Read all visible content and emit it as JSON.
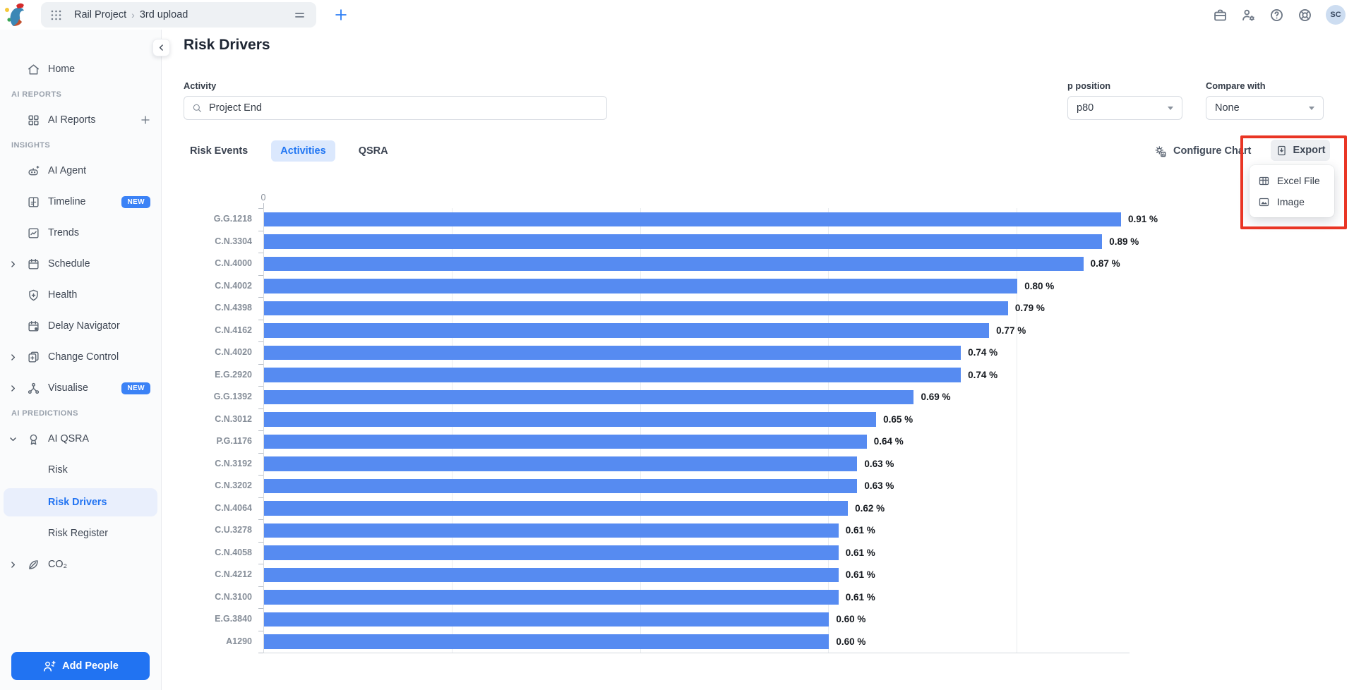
{
  "topbar": {
    "breadcrumb": {
      "project": "Rail Project",
      "separator": "›",
      "page": "3rd upload"
    },
    "avatar_initials": "SC"
  },
  "sidebar": {
    "sections": [
      {
        "label": "",
        "items": [
          {
            "label": "Home",
            "icon": "home"
          }
        ]
      },
      {
        "label": "AI REPORTS",
        "items": [
          {
            "label": "AI Reports",
            "icon": "grid",
            "plus": true
          }
        ]
      },
      {
        "label": "INSIGHTS",
        "items": [
          {
            "label": "AI Agent",
            "icon": "robot"
          },
          {
            "label": "Timeline",
            "icon": "timeline",
            "badge": "NEW"
          },
          {
            "label": "Trends",
            "icon": "trends"
          },
          {
            "label": "Schedule",
            "icon": "calendar",
            "chevron": true
          },
          {
            "label": "Health",
            "icon": "shield-plus"
          },
          {
            "label": "Delay Navigator",
            "icon": "calendar-clock"
          },
          {
            "label": "Change Control",
            "icon": "copy-plus",
            "chevron": true
          },
          {
            "label": "Visualise",
            "icon": "network",
            "chevron": true,
            "badge": "NEW"
          }
        ]
      },
      {
        "label": "AI PREDICTIONS",
        "items": [
          {
            "label": "AI QSRA",
            "icon": "award",
            "expanded": true,
            "children": [
              "Risk",
              "Risk Drivers",
              "Risk Register"
            ],
            "selected_child": "Risk Drivers"
          },
          {
            "label": "CO₂",
            "icon": "leaf",
            "chevron": true
          }
        ]
      }
    ],
    "add_people_label": "Add People"
  },
  "main": {
    "title": "Risk Drivers",
    "filters": {
      "activity_label": "Activity",
      "activity_value": "Project End",
      "p_position_label": "p position",
      "p_position_value": "p80",
      "compare_with_label": "Compare with",
      "compare_with_value": "None"
    },
    "tabs": [
      "Risk Events",
      "Activities",
      "QSRA"
    ],
    "active_tab": "Activities",
    "toolbar": {
      "configure_chart_label": "Configure Chart",
      "export_label": "Export"
    },
    "export_menu": [
      {
        "label": "Excel File",
        "icon": "table"
      },
      {
        "label": "Image",
        "icon": "image"
      }
    ]
  },
  "chart_data": {
    "type": "bar",
    "orientation": "horizontal",
    "categories": [
      "G.G.1218",
      "C.N.3304",
      "C.N.4000",
      "C.N.4002",
      "C.N.4398",
      "C.N.4162",
      "C.N.4020",
      "E.G.2920",
      "G.G.1392",
      "C.N.3012",
      "P.G.1176",
      "C.N.3192",
      "C.N.3202",
      "C.N.4064",
      "C.U.3278",
      "C.N.4058",
      "C.N.4212",
      "C.N.3100",
      "E.G.3840",
      "A1290"
    ],
    "values": [
      0.91,
      0.89,
      0.87,
      0.8,
      0.79,
      0.77,
      0.74,
      0.74,
      0.69,
      0.65,
      0.64,
      0.63,
      0.63,
      0.62,
      0.61,
      0.61,
      0.61,
      0.61,
      0.6,
      0.6
    ],
    "value_labels": [
      "0.91 %",
      "0.89 %",
      "0.87 %",
      "0.80 %",
      "0.79 %",
      "0.77 %",
      "0.74 %",
      "0.74 %",
      "0.69 %",
      "0.65 %",
      "0.64 %",
      "0.63 %",
      "0.63 %",
      "0.62 %",
      "0.61 %",
      "0.61 %",
      "0.61 %",
      "0.61 %",
      "0.60 %",
      "0.60 %"
    ],
    "unit": "%",
    "xlim": [
      0,
      1.0
    ],
    "x_tick_labels": [
      "0"
    ],
    "gridline_interval": 0.2,
    "grid": true,
    "legend": false,
    "bar_color": "#568bf1"
  },
  "colors": {
    "accent_blue": "#2173f2",
    "bar_blue": "#568bf1",
    "badge_blue": "#3b82f6",
    "selected_item_bg": "#e9effc",
    "tab_pill_bg": "#dbe8fd",
    "annotation_red": "#e93524"
  }
}
